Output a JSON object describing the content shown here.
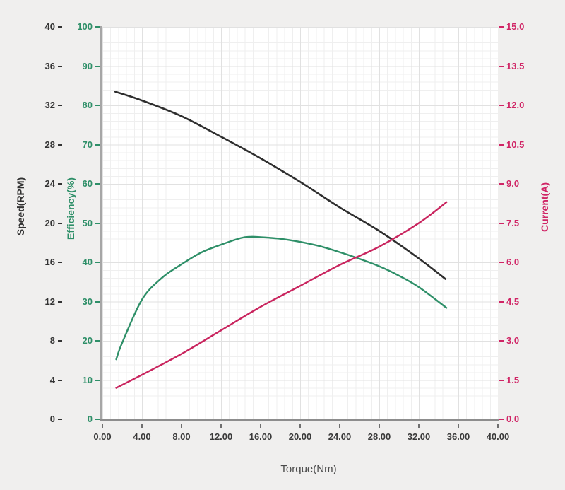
{
  "chart_data": {
    "type": "line",
    "title": "",
    "grid": "on",
    "legend": "none",
    "x_axis": {
      "label": "Torque(Nm)",
      "min": 0,
      "max": 40,
      "tick_labels": [
        "0.00",
        "4.00",
        "8.00",
        "12.00",
        "16.00",
        "20.00",
        "24.00",
        "28.00",
        "32.00",
        "36.00",
        "40.00"
      ]
    },
    "axes": {
      "speed": {
        "label": "Speed(RPM)",
        "min": 0,
        "max": 40,
        "color": "#333333",
        "tick_labels": [
          "40",
          "36",
          "32",
          "28",
          "24",
          "20",
          "16",
          "12",
          "8",
          "4",
          "0"
        ]
      },
      "efficiency": {
        "label": "Efficiency(%)",
        "min": 0,
        "max": 100,
        "color": "#2e8f68",
        "tick_labels": [
          "100",
          "90",
          "80",
          "70",
          "60",
          "50",
          "40",
          "30",
          "20",
          "10",
          "0"
        ]
      },
      "current": {
        "label": "Current(A)",
        "min": 0,
        "max": 15,
        "color": "#d02465",
        "tick_labels": [
          "15.0",
          "13.5",
          "12.0",
          "10.5",
          "9.0",
          "7.5",
          "6.0",
          "4.5",
          "3.0",
          "1.5",
          "0.0"
        ]
      }
    },
    "series": [
      {
        "name": "speed",
        "axis": "speed",
        "color": "#2e2e2e",
        "points": [
          [
            1.3,
            33.4
          ],
          [
            4,
            32.5
          ],
          [
            8,
            30.9
          ],
          [
            12,
            28.8
          ],
          [
            16,
            26.6
          ],
          [
            20,
            24.2
          ],
          [
            24,
            21.6
          ],
          [
            28,
            19.2
          ],
          [
            32,
            16.4
          ],
          [
            34.7,
            14.3
          ]
        ]
      },
      {
        "name": "efficiency",
        "axis": "efficiency",
        "color": "#2e8f68",
        "points": [
          [
            1.4,
            15.3
          ],
          [
            2,
            19.5
          ],
          [
            4,
            30.5
          ],
          [
            6,
            36.0
          ],
          [
            8,
            39.5
          ],
          [
            10,
            42.5
          ],
          [
            12,
            44.5
          ],
          [
            14,
            46.2
          ],
          [
            15,
            46.5
          ],
          [
            16,
            46.4
          ],
          [
            18,
            46.0
          ],
          [
            20,
            45.2
          ],
          [
            22,
            44.1
          ],
          [
            24,
            42.6
          ],
          [
            26,
            40.9
          ],
          [
            28,
            39.0
          ],
          [
            30,
            36.6
          ],
          [
            32,
            33.7
          ],
          [
            34.8,
            28.4
          ]
        ]
      },
      {
        "name": "current",
        "axis": "current",
        "color": "#c9245e",
        "points": [
          [
            1.4,
            1.2
          ],
          [
            4,
            1.7
          ],
          [
            8,
            2.5
          ],
          [
            12,
            3.4
          ],
          [
            16,
            4.3
          ],
          [
            20,
            5.1
          ],
          [
            24,
            5.9
          ],
          [
            28,
            6.6
          ],
          [
            32,
            7.5
          ],
          [
            34.8,
            8.3
          ]
        ]
      }
    ]
  },
  "colors": {
    "page_background": "#f0efee",
    "plot_background": "#ffffff",
    "grid_minor": "#efefef",
    "grid_major": "#e1e1e1",
    "axis_line": "#a6a6a6",
    "speed_accent": "#333333",
    "efficiency_accent": "#2e8f68",
    "current_accent": "#d02465"
  }
}
